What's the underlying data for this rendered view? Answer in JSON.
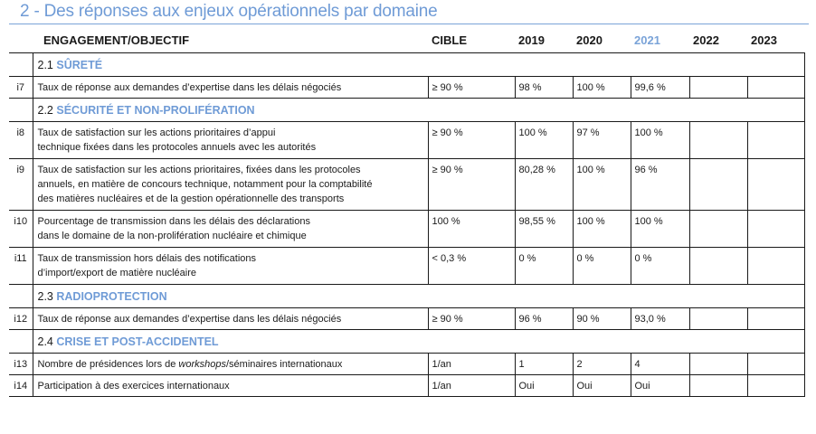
{
  "title": "2 - Des réponses aux enjeux opérationnels par domaine",
  "table": {
    "headers": {
      "objective": "ENGAGEMENT/OBJECTIF",
      "target": "CIBLE",
      "years": [
        "2019",
        "2020",
        "2021",
        "2022",
        "2023"
      ],
      "highlighted_year": "2021"
    },
    "sections": [
      {
        "number": "2.1",
        "label": "SÛRETÉ",
        "rows": [
          {
            "id": "i7",
            "lines": [
              "Taux de réponse aux demandes d’expertise dans les délais négociés"
            ],
            "target": "≥ 90 %",
            "values": [
              "98 %",
              "100 %",
              "99,6 %",
              "",
              ""
            ]
          }
        ]
      },
      {
        "number": "2.2",
        "label": "SÉCURITÉ ET NON-PROLIFÉRATION",
        "rows": [
          {
            "id": "i8",
            "lines": [
              "Taux de satisfaction sur les actions prioritaires d’appui",
              "technique fixées dans les protocoles annuels avec les autorités"
            ],
            "target": "≥ 90 %",
            "values": [
              "100 %",
              "97 %",
              "100 %",
              "",
              ""
            ]
          },
          {
            "id": "i9",
            "lines": [
              "Taux de satisfaction sur les actions prioritaires, fixées dans les protocoles",
              "annuels, en matière de concours technique, notamment pour la comptabilité",
              "des matières nucléaires et de la gestion opérationnelle des transports"
            ],
            "target": "≥ 90 %",
            "values": [
              "80,28 %",
              "100 %",
              "96 %",
              "",
              ""
            ]
          },
          {
            "id": "i10",
            "lines": [
              "Pourcentage de transmission dans les délais des déclarations",
              "dans le domaine de la non-prolifération nucléaire et chimique"
            ],
            "target": "100 %",
            "values": [
              "98,55 %",
              "100 %",
              "100 %",
              "",
              ""
            ]
          },
          {
            "id": "i11",
            "lines": [
              "Taux de transmission hors délais des notifications",
              "d’import/export de matière nucléaire"
            ],
            "target": "< 0,3 %",
            "values": [
              "0 %",
              "0 %",
              "0 %",
              "",
              ""
            ]
          }
        ]
      },
      {
        "number": "2.3",
        "label": "RADIOPROTECTION",
        "rows": [
          {
            "id": "i12",
            "lines": [
              "Taux de réponse aux demandes d’expertise dans les délais négociés"
            ],
            "target": "≥ 90 %",
            "values": [
              "96 %",
              "90 %",
              "93,0 %",
              "",
              ""
            ]
          }
        ]
      },
      {
        "number": "2.4",
        "label": "CRISE ET POST-ACCIDENTEL",
        "rows": [
          {
            "id": "i13",
            "text_before": "Nombre de présidences lors de ",
            "text_italic": "workshops",
            "text_after": "/séminaires internationaux",
            "target": "1/an",
            "values": [
              "1",
              "2",
              "4",
              "",
              ""
            ]
          },
          {
            "id": "i14",
            "lines": [
              "Participation à des exercices internationaux"
            ],
            "target": "1/an",
            "values": [
              "Oui",
              "Oui",
              "Oui",
              "",
              ""
            ]
          }
        ]
      }
    ]
  },
  "colors": {
    "accent": "#6f9bd6",
    "text": "#1a1a1a",
    "border": "#1a1a1a"
  }
}
